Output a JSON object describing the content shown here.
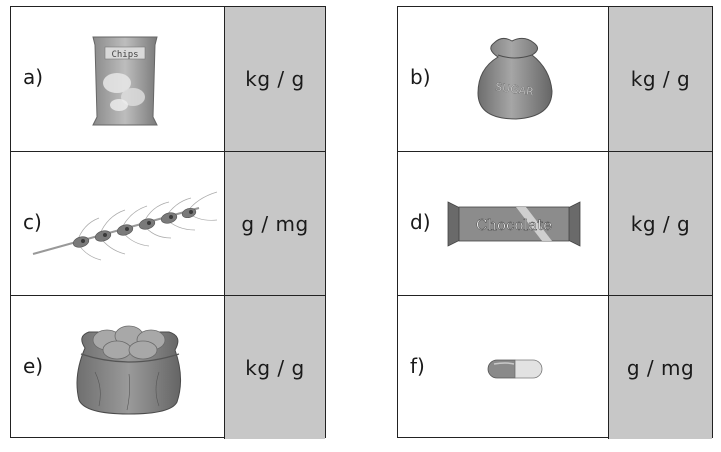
{
  "rows": [
    {
      "letter": "a)",
      "unit": "kg / g",
      "item_icon": "chips-bag-icon",
      "bag_text": "Chips"
    },
    {
      "letter": "b)",
      "unit": "kg / g",
      "item_icon": "sugar-sack-icon",
      "bag_text": "SUGAR"
    },
    {
      "letter": "c)",
      "unit": "g / mg",
      "item_icon": "wheat-ear-icon"
    },
    {
      "letter": "d)",
      "unit": "kg / g",
      "item_icon": "chocolate-bar-icon",
      "bag_text": "Chocolate"
    },
    {
      "letter": "e)",
      "unit": "kg / g",
      "item_icon": "potato-sack-icon"
    },
    {
      "letter": "f)",
      "unit": "g / mg",
      "item_icon": "capsule-pill-icon"
    }
  ],
  "colors": {
    "unit_bg": "#c7c7c7",
    "border": "#222222"
  }
}
